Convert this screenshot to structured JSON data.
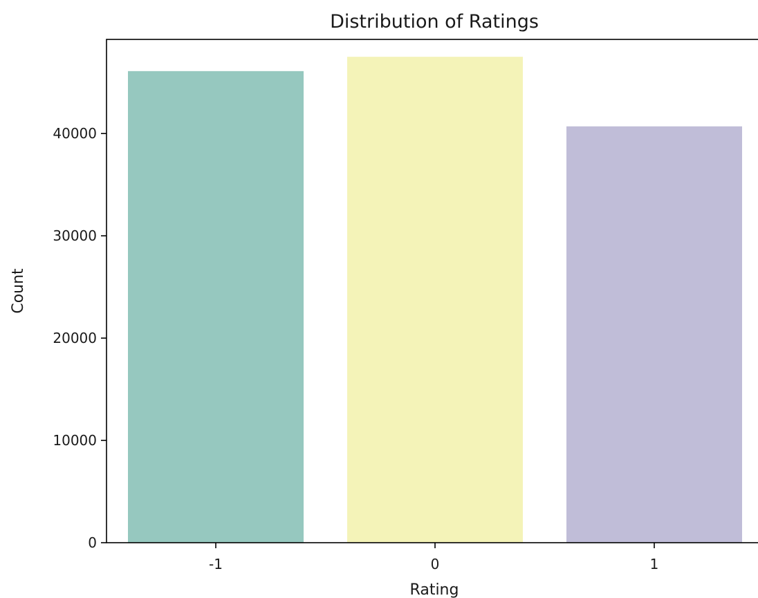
{
  "chart_data": {
    "type": "bar",
    "title": "Distribution of Ratings",
    "xlabel": "Rating",
    "ylabel": "Count",
    "categories": [
      "-1",
      "0",
      "1"
    ],
    "values": [
      46100,
      47500,
      40700
    ],
    "colors": [
      "#96c8bf",
      "#f4f3b8",
      "#c0bdd8"
    ],
    "ylim": [
      0,
      49200
    ],
    "yticks": [
      0,
      10000,
      20000,
      30000,
      40000
    ],
    "grid": false,
    "legend": "none"
  }
}
